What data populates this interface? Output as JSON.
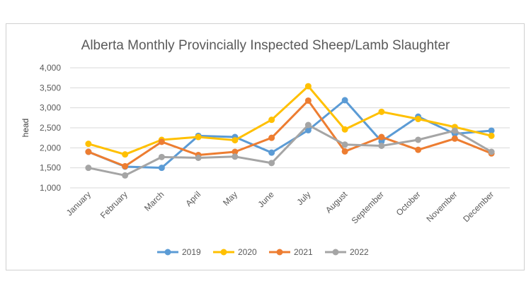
{
  "chart_data": {
    "type": "line",
    "title": "Alberta Monthly Provincially Inspected Sheep/Lamb Slaughter",
    "xlabel": "",
    "ylabel": "head",
    "ylim": [
      1000,
      4000
    ],
    "yticks": [
      "1,000",
      "1,500",
      "2,000",
      "2,500",
      "3,000",
      "3,500",
      "4,000"
    ],
    "grid": true,
    "legend": "bottom",
    "categories": [
      "January",
      "February",
      "March",
      "April",
      "May",
      "June",
      "July",
      "August",
      "September",
      "October",
      "November",
      "December"
    ],
    "series": [
      {
        "name": "2019",
        "color": "#5b9bd5",
        "values": [
          1900,
          1530,
          1500,
          2300,
          2270,
          1880,
          2440,
          3190,
          2160,
          2780,
          2350,
          2430
        ]
      },
      {
        "name": "2020",
        "color": "#ffc000",
        "values": [
          2100,
          1835,
          2200,
          2270,
          2190,
          2700,
          3540,
          2460,
          2900,
          2720,
          2520,
          2300
        ]
      },
      {
        "name": "2021",
        "color": "#ed7d31",
        "values": [
          1900,
          1540,
          2150,
          1820,
          1900,
          2250,
          3180,
          1910,
          2270,
          1950,
          2230,
          1860
        ]
      },
      {
        "name": "2022",
        "color": "#a5a5a5",
        "values": [
          1500,
          1310,
          1770,
          1750,
          1780,
          1620,
          2570,
          2080,
          2050,
          2200,
          2430,
          1900
        ]
      }
    ]
  }
}
